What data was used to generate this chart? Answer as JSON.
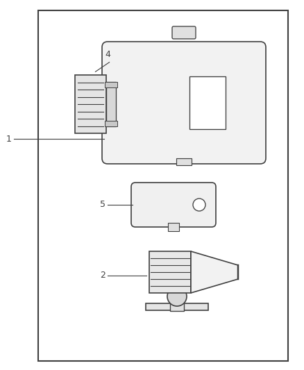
{
  "bg_color": "#ffffff",
  "border_color": "#404040",
  "line_color": "#404040",
  "label_color": "#606060",
  "fig_width": 4.38,
  "fig_height": 5.33,
  "dpi": 100
}
